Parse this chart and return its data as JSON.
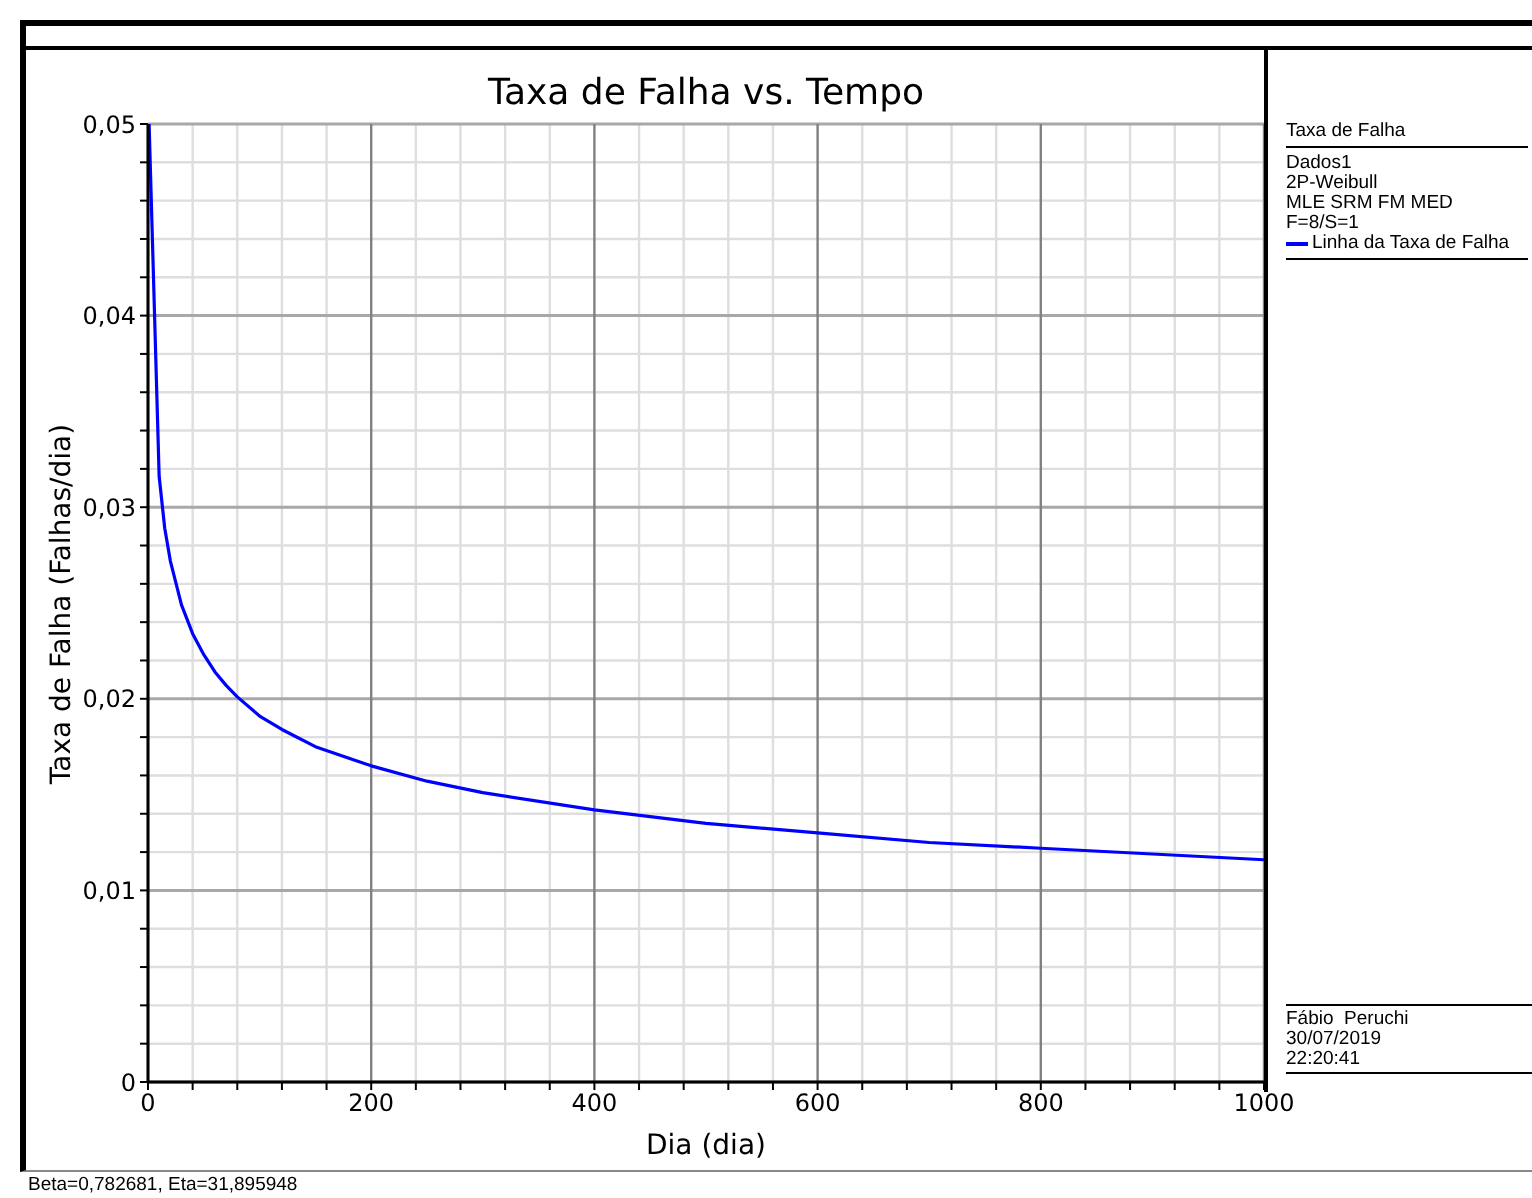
{
  "chart_data": {
    "type": "line",
    "title": "Taxa de Falha vs. Tempo",
    "xlabel": "Dia (dia)",
    "ylabel": "Taxa de Falha (Falhas/dia)",
    "legend_title": "Taxa de Falha",
    "x": [
      1,
      10,
      15,
      20,
      30,
      40,
      50,
      60,
      70,
      80,
      100,
      120,
      150,
      200,
      250,
      300,
      400,
      500,
      600,
      700,
      800,
      900,
      1000
    ],
    "series": [
      {
        "name": "Linha da Taxa de Falha",
        "color": "#0000ff",
        "values": [
          0.05,
          0.0316,
          0.0289,
          0.0272,
          0.0249,
          0.0234,
          0.0223,
          0.0214,
          0.0207,
          0.0201,
          0.0191,
          0.0184,
          0.0175,
          0.0165,
          0.0157,
          0.0151,
          0.0142,
          0.0135,
          0.013,
          0.0125,
          0.0122,
          0.0119,
          0.0116
        ]
      }
    ],
    "xlim": [
      0,
      1000
    ],
    "xticks": [
      0,
      {
        "value": 40,
        "label": null
      },
      {
        "value": 80,
        "label": null
      },
      {
        "value": 120,
        "label": null
      },
      {
        "value": 160,
        "label": null
      },
      200,
      {
        "value": 240,
        "label": null
      },
      {
        "value": 280,
        "label": null
      },
      {
        "value": 320,
        "label": null
      },
      {
        "value": 360,
        "label": null
      },
      400,
      {
        "value": 440,
        "label": null
      },
      {
        "value": 480,
        "label": null
      },
      {
        "value": 520,
        "label": null
      },
      {
        "value": 560,
        "label": null
      },
      600,
      {
        "value": 640,
        "label": null
      },
      {
        "value": 680,
        "label": null
      },
      {
        "value": 720,
        "label": null
      },
      {
        "value": 760,
        "label": null
      },
      800,
      {
        "value": 840,
        "label": null
      },
      {
        "value": 880,
        "label": null
      },
      {
        "value": 920,
        "label": null
      },
      {
        "value": 960,
        "label": null
      },
      1000
    ],
    "ylim": [
      0,
      0.05
    ],
    "yticks": [
      0,
      {
        "value": 0.002,
        "label": null
      },
      {
        "value": 0.004,
        "label": null
      },
      {
        "value": 0.006,
        "label": null
      },
      {
        "value": 0.008,
        "label": null
      },
      {
        "value": 0.01,
        "label": "0,01"
      },
      {
        "value": 0.012,
        "label": null
      },
      {
        "value": 0.014,
        "label": null
      },
      {
        "value": 0.016,
        "label": null
      },
      {
        "value": 0.018,
        "label": null
      },
      {
        "value": 0.02,
        "label": "0,02"
      },
      {
        "value": 0.022,
        "label": null
      },
      {
        "value": 0.024,
        "label": null
      },
      {
        "value": 0.026,
        "label": null
      },
      {
        "value": 0.028,
        "label": null
      },
      {
        "value": 0.03,
        "label": "0,03"
      },
      {
        "value": 0.032,
        "label": null
      },
      {
        "value": 0.034,
        "label": null
      },
      {
        "value": 0.036,
        "label": null
      },
      {
        "value": 0.038,
        "label": null
      },
      {
        "value": 0.04,
        "label": "0,04"
      },
      {
        "value": 0.042,
        "label": null
      },
      {
        "value": 0.044,
        "label": null
      },
      {
        "value": 0.046,
        "label": null
      },
      {
        "value": 0.048,
        "label": null
      },
      {
        "value": 0.05,
        "label": "0,05"
      }
    ],
    "grid": true,
    "legend": "right",
    "marker": "none",
    "annotations": [
      "Dados1",
      "2P-Weibull",
      "MLE SRM FM MED",
      "F=8/S=1",
      "Fábio  Peruchi",
      "30/07/2019",
      "22:20:41",
      "Beta=0,782681, Eta=31,895948"
    ]
  }
}
